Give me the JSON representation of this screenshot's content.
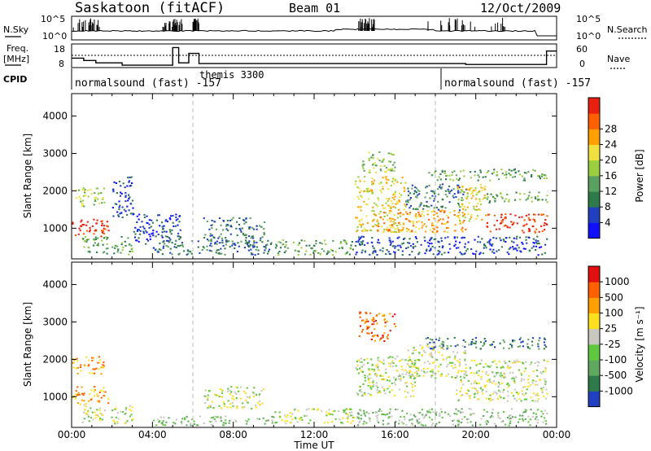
{
  "header": {
    "station": "Saskatoon (fitACF)",
    "beam": "Beam 01",
    "date": "12/Oct/2009"
  },
  "top_panels": {
    "nsky_label": "N.Sky",
    "nsky_ticks": [
      "10^5",
      "10^0"
    ],
    "nsearch_label": "N.Search",
    "nsearch_ticks": [
      "10^5",
      "10^0"
    ],
    "freq_label_1": "Freq.",
    "freq_label_2": "[MHz]",
    "freq_ticks": [
      "18",
      "8"
    ],
    "nave_label": "Nave",
    "nave_ticks": [
      "60",
      "0"
    ],
    "cpid_label": "CPID",
    "cpid_segments": [
      {
        "label": "normalsound (fast) -157",
        "start_h": 0,
        "end_h": 6
      },
      {
        "label": "themis 3300",
        "start_h": 6,
        "end_h": 18
      },
      {
        "label": "normalsound (fast) -157",
        "start_h": 18,
        "end_h": 24
      }
    ]
  },
  "chart_data": [
    {
      "type": "heatmap",
      "name": "power",
      "ylabel": "Slant Range [km]",
      "xlim": [
        0,
        24
      ],
      "ylim": [
        180,
        4600
      ],
      "yticks": [
        1000,
        2000,
        3000,
        4000
      ],
      "colorbar": {
        "label": "Power [dB]",
        "ticks": [
          "4",
          "8",
          "12",
          "16",
          "20",
          "24",
          "28"
        ],
        "colors": [
          "#1010ff",
          "#2040c0",
          "#2e7a4a",
          "#5aa060",
          "#9ad040",
          "#f0e040",
          "#ffa000",
          "#ff6000",
          "#e82010"
        ]
      },
      "regions": [
        {
          "t": [
            0.0,
            1.8
          ],
          "r": [
            800,
            1300
          ],
          "level": 8
        },
        {
          "t": [
            0.0,
            1.6
          ],
          "r": [
            1600,
            2100
          ],
          "level": 4
        },
        {
          "t": [
            0.5,
            3.0
          ],
          "r": [
            300,
            800
          ],
          "level": 3
        },
        {
          "t": [
            2.0,
            3.0
          ],
          "r": [
            1300,
            2400
          ],
          "level": 1
        },
        {
          "t": [
            3.0,
            5.5
          ],
          "r": [
            600,
            1400
          ],
          "level": 1
        },
        {
          "t": [
            4.0,
            10.0
          ],
          "r": [
            300,
            700
          ],
          "level": 2
        },
        {
          "t": [
            6.5,
            9.5
          ],
          "r": [
            600,
            1300
          ],
          "level": 2
        },
        {
          "t": [
            10.0,
            14.0
          ],
          "r": [
            300,
            700
          ],
          "level": 3
        },
        {
          "t": [
            14.0,
            16.5
          ],
          "r": [
            900,
            2400
          ],
          "level": 5
        },
        {
          "t": [
            14.2,
            16.0
          ],
          "r": [
            2500,
            3100
          ],
          "level": 4
        },
        {
          "t": [
            15.0,
            19.5
          ],
          "r": [
            900,
            1500
          ],
          "level": 6
        },
        {
          "t": [
            16.5,
            19.5
          ],
          "r": [
            1500,
            2200
          ],
          "level": 2
        },
        {
          "t": [
            17.5,
            23.5
          ],
          "r": [
            2300,
            2600
          ],
          "level": 3
        },
        {
          "t": [
            19.0,
            20.5
          ],
          "r": [
            1200,
            2200
          ],
          "level": 5
        },
        {
          "t": [
            20.5,
            23.5
          ],
          "r": [
            900,
            1400
          ],
          "level": 8
        },
        {
          "t": [
            20.5,
            23.5
          ],
          "r": [
            1700,
            2000
          ],
          "level": 3
        },
        {
          "t": [
            14.0,
            23.5
          ],
          "r": [
            300,
            800
          ],
          "level": 1
        }
      ]
    },
    {
      "type": "heatmap",
      "name": "velocity",
      "ylabel": "Slant Range [km]",
      "xlabel": "Time UT",
      "xlim": [
        0,
        24
      ],
      "ylim": [
        180,
        4600
      ],
      "xticks": [
        "00:00",
        "04:00",
        "08:00",
        "12:00",
        "16:00",
        "20:00",
        "00:00"
      ],
      "yticks": [
        1000,
        2000,
        3000,
        4000
      ],
      "colorbar": {
        "label": "Velocity [m s⁻¹]",
        "ticks": [
          "1000",
          "500",
          "100",
          "25",
          "-25",
          "-100",
          "-500",
          "-1000"
        ],
        "colors": [
          "#2040c0",
          "#2e7a4a",
          "#60a860",
          "#60c840",
          "#c8c8c0",
          "#ffe020",
          "#ffa000",
          "#ff6000",
          "#e01010"
        ]
      },
      "regions": [
        {
          "t": [
            0.0,
            1.8
          ],
          "r": [
            800,
            1300
          ],
          "level": 6
        },
        {
          "t": [
            0.0,
            1.6
          ],
          "r": [
            1600,
            2100
          ],
          "level": 6
        },
        {
          "t": [
            0.5,
            3.0
          ],
          "r": [
            300,
            800
          ],
          "level": 4
        },
        {
          "t": [
            4.0,
            10.0
          ],
          "r": [
            250,
            500
          ],
          "level": 3
        },
        {
          "t": [
            6.5,
            9.5
          ],
          "r": [
            700,
            1300
          ],
          "level": 4
        },
        {
          "t": [
            10.0,
            14.0
          ],
          "r": [
            300,
            700
          ],
          "level": 4
        },
        {
          "t": [
            14.0,
            17.0
          ],
          "r": [
            1000,
            2100
          ],
          "level": 4
        },
        {
          "t": [
            14.2,
            16.0
          ],
          "r": [
            2500,
            3300
          ],
          "level": 7
        },
        {
          "t": [
            16.5,
            19.5
          ],
          "r": [
            1500,
            2400
          ],
          "level": 4
        },
        {
          "t": [
            19.0,
            23.5
          ],
          "r": [
            900,
            2000
          ],
          "level": 4
        },
        {
          "t": [
            17.5,
            23.5
          ],
          "r": [
            2300,
            2600
          ],
          "level": 1
        },
        {
          "t": [
            14.0,
            23.5
          ],
          "r": [
            250,
            700
          ],
          "level": 3
        }
      ]
    }
  ]
}
